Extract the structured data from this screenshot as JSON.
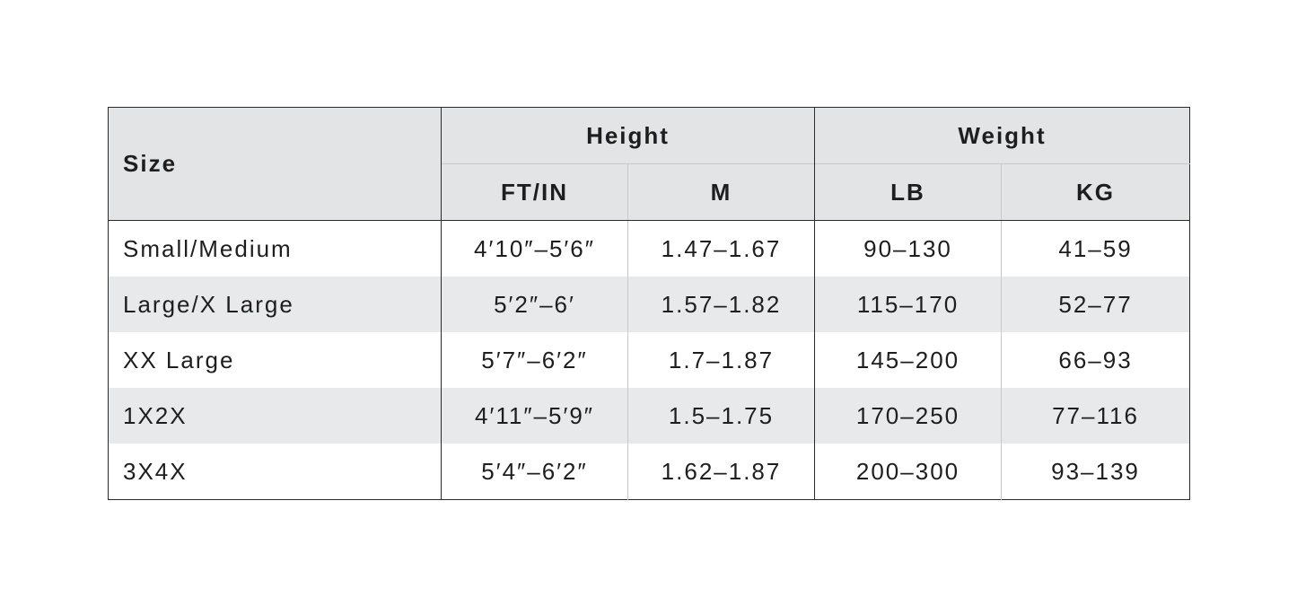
{
  "header": {
    "size": "Size",
    "height": "Height",
    "weight": "Weight",
    "subheaders": [
      "FT/IN",
      "M",
      "LB",
      "KG"
    ]
  },
  "rows": [
    [
      "Small/Medium",
      "4′10″–5′6″",
      "1.47–1.67",
      "90–130",
      "41–59"
    ],
    [
      "Large/X Large",
      "5′2″–6′",
      "1.57–1.82",
      "115–170",
      "52–77"
    ],
    [
      "XX Large",
      "5′7″–6′2″",
      "1.7–1.87",
      "145–200",
      "66–93"
    ],
    [
      "1X2X",
      "4′11″–5′9″",
      "1.5–1.75",
      "170–250",
      "77–116"
    ],
    [
      "3X4X",
      "5′4″–6′2″",
      "1.62–1.87",
      "200–300",
      "93–139"
    ]
  ]
}
